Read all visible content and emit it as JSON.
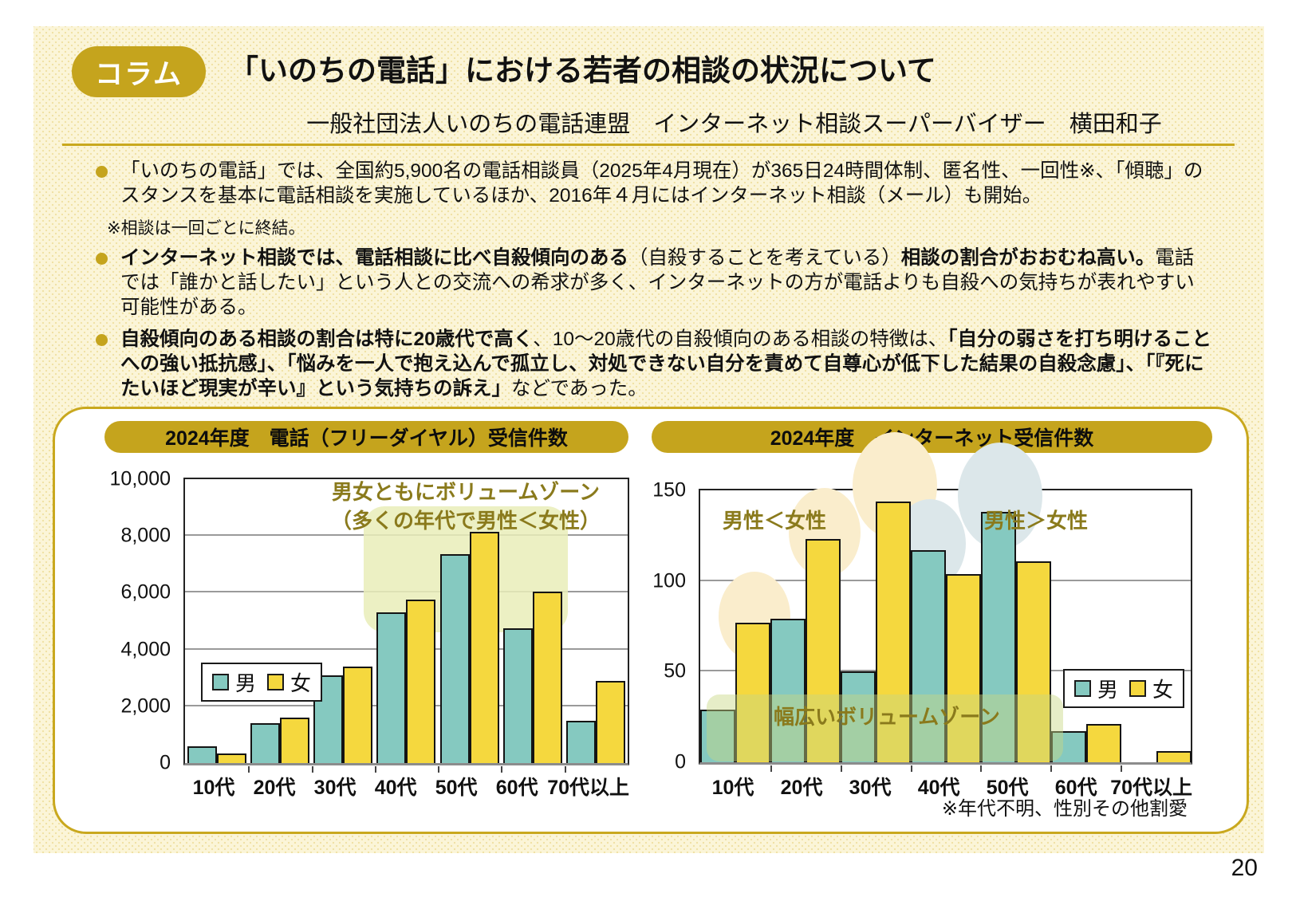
{
  "page": {
    "number": "20"
  },
  "header": {
    "badge": "コラム",
    "title": "「いのちの電話」における若者の相談の状況について",
    "subtitle": "一般社団法人いのちの電話連盟　インターネット相談スーパーバイザー　横田和子"
  },
  "bullets": [
    {
      "segments": [
        {
          "t": "「いのちの電話」では、全国約5,900名の電話相談員（2025年4月現在）が365日24時間体制、匿名性、一回性※、「傾聴」のスタンスを基本に電話相談を実施しているほか、2016年４月にはインターネット相談（メール）も開始。",
          "b": false
        }
      ],
      "footnote": "※相談は一回ごとに終結。"
    },
    {
      "segments": [
        {
          "t": "インターネット相談では、電話相談に比べ自殺傾向のある",
          "b": true
        },
        {
          "t": "（自殺することを考えている）",
          "b": false
        },
        {
          "t": "相談の割合がおおむね高い。",
          "b": true
        },
        {
          "t": "電話では「誰かと話したい」という人との交流への希求が多く、インターネットの方が電話よりも自殺への気持ちが表れやすい可能性がある。",
          "b": false
        }
      ]
    },
    {
      "segments": [
        {
          "t": "自殺傾向のある相談の割合は特に20歳代で高く",
          "b": true
        },
        {
          "t": "、10～20歳代の自殺傾向のある相談の特徴は、",
          "b": false
        },
        {
          "t": "「自分の弱さを打ち明けることへの強い抵抗感」、「悩みを一人で抱え込んで孤立し、対処できない自分を責めて自尊心が低下した結果の自殺念慮」、「『死にたいほど現実が辛い』という気持ちの訴え」",
          "b": true
        },
        {
          "t": "などであった。",
          "b": false
        }
      ]
    }
  ],
  "colors": {
    "gold": "#C5A41D",
    "rule_gold": "#C9A81E",
    "male_teal": "#85C9C0",
    "female_yellow": "#F5D83E",
    "annotation_olive": "#8A7A1C",
    "panel_cream": "#FBF5D8",
    "highlight_yellow": "#FAEDCC",
    "highlight_blue": "#DCE7EA"
  },
  "chart_data": [
    {
      "type": "bar",
      "title": "2024年度　電話（フリーダイヤル）受信件数",
      "categories": [
        "10代",
        "20代",
        "30代",
        "40代",
        "50代",
        "60代",
        "70代以上"
      ],
      "series": [
        {
          "name": "男",
          "color": "#85C9C0",
          "values": [
            600,
            1400,
            3100,
            5300,
            7350,
            4750,
            1500
          ]
        },
        {
          "name": "女",
          "color": "#F5D83E",
          "values": [
            350,
            1600,
            3400,
            5750,
            8150,
            6050,
            2900
          ]
        }
      ],
      "ylim": [
        0,
        10000
      ],
      "yticks": [
        "0",
        "2,000",
        "4,000",
        "6,000",
        "8,000",
        "10,000"
      ],
      "grid": true,
      "legend_position": "middle-left",
      "annotations": {
        "line1": "男女ともにボリュームゾーン",
        "line2": "（多くの年代で男性＜女性）"
      }
    },
    {
      "type": "bar",
      "title": "2024年度　インターネット受信件数",
      "categories": [
        "10代",
        "20代",
        "30代",
        "40代",
        "50代",
        "60代",
        "70代以上"
      ],
      "series": [
        {
          "name": "男",
          "color": "#85C9C0",
          "values": [
            29,
            79,
            50,
            117,
            138,
            17,
            0
          ]
        },
        {
          "name": "女",
          "color": "#F5D83E",
          "values": [
            77,
            123,
            144,
            104,
            111,
            21,
            6
          ]
        }
      ],
      "ylim": [
        0,
        150
      ],
      "yticks": [
        "0",
        "50",
        "100",
        "150"
      ],
      "grid": true,
      "legend_position": "middle-right",
      "annotations": {
        "left": "男性＜女性",
        "right": "男性＞女性",
        "zone": "幅広いボリュームゾーン"
      },
      "highlights": [
        {
          "category_index": 0,
          "series_index": 1,
          "color": "#FAEDCC",
          "size": "small"
        },
        {
          "category_index": 1,
          "series_index": 1,
          "color": "#FAEDCC",
          "size": "small"
        },
        {
          "category_index": 2,
          "series_index": 1,
          "color": "#FAEDCC",
          "size": "large"
        },
        {
          "category_index": 3,
          "series_index": 0,
          "color": "#DCE7EA",
          "size": "small"
        },
        {
          "category_index": 4,
          "series_index": 0,
          "color": "#DCE7EA",
          "size": "large"
        }
      ],
      "footnote": "※年代不明、性別その他割愛"
    }
  ]
}
